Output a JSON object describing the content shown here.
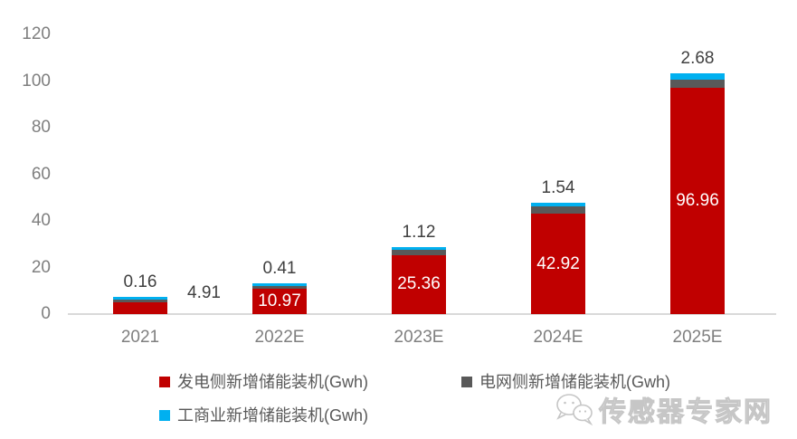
{
  "chart_data": {
    "type": "bar",
    "stacked": true,
    "categories": [
      "2021",
      "2022E",
      "2023E",
      "2024E",
      "2025E"
    ],
    "series": [
      {
        "name": "发电侧新增储能装机(Gwh)",
        "color": "#c00000",
        "values": [
          4.91,
          10.97,
          25.36,
          42.92,
          96.96
        ],
        "labels": [
          "4.91",
          "10.97",
          "25.36",
          "42.92",
          "96.96"
        ]
      },
      {
        "name": "电网侧新增储能装机(Gwh)",
        "color": "#595959",
        "values": [
          0.3,
          1.0,
          2.3,
          3.3,
          3.5
        ],
        "values_estimated_from_pixels": true,
        "labels": []
      },
      {
        "name": "工商业新增储能装机(Gwh)",
        "color": "#00b0f0",
        "values": [
          0.16,
          0.41,
          1.12,
          1.54,
          2.68
        ],
        "labels": [
          "0.16",
          "0.41",
          "1.12",
          "1.54",
          "2.68"
        ]
      }
    ],
    "yticks": [
      0,
      20,
      40,
      60,
      80,
      100,
      120
    ],
    "ylim": [
      0,
      120
    ],
    "grid": false,
    "legend_position": "bottom",
    "colors": {
      "axis_line": "#d9d9d9",
      "axis_text": "#7f7f7f",
      "outside_label_text": "#404040",
      "inside_label_text": "#ffffff"
    }
  },
  "watermark": {
    "text": "传感器专家网"
  }
}
